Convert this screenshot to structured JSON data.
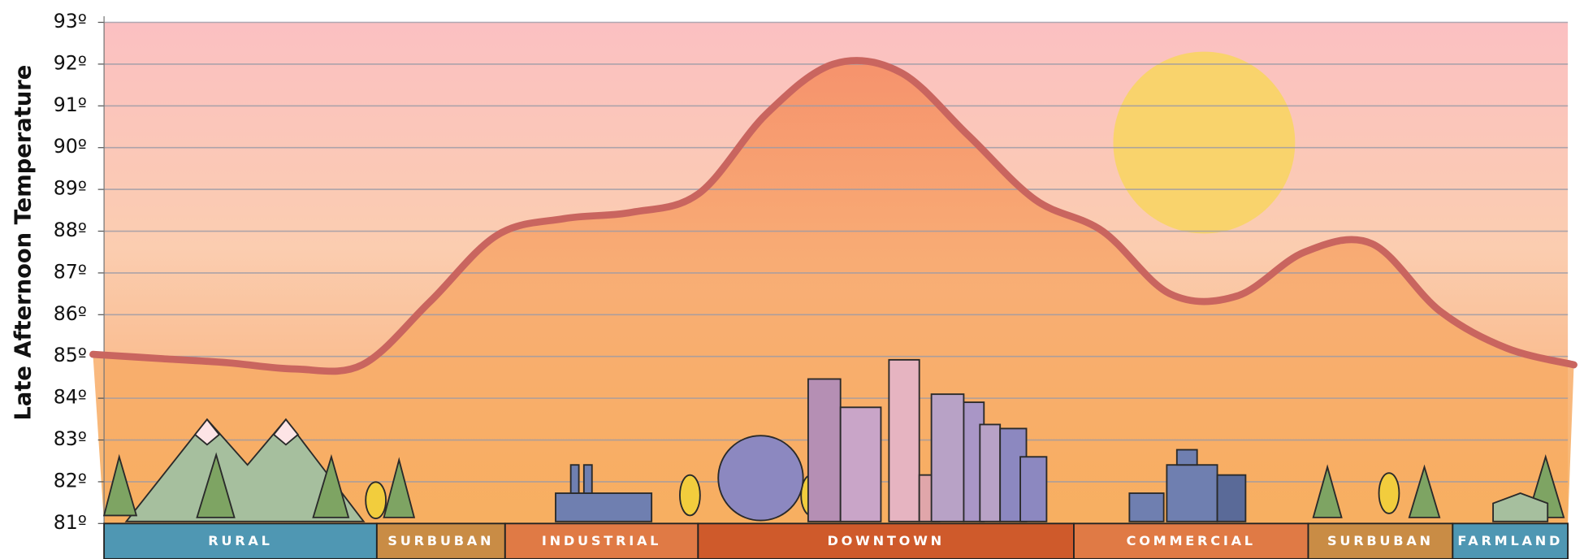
{
  "chart_data": {
    "type": "line",
    "y_label": "Late Afternoon Temperature",
    "ylim": [
      81,
      93
    ],
    "yticks": [
      {
        "value": 81,
        "label": "81º"
      },
      {
        "value": 82,
        "label": "82º"
      },
      {
        "value": 83,
        "label": "83º"
      },
      {
        "value": 84,
        "label": "84º"
      },
      {
        "value": 85,
        "label": "85º"
      },
      {
        "value": 86,
        "label": "86º"
      },
      {
        "value": 87,
        "label": "87º"
      },
      {
        "value": 88,
        "label": "88º"
      },
      {
        "value": 89,
        "label": "89º"
      },
      {
        "value": 90,
        "label": "90º"
      },
      {
        "value": 91,
        "label": "91º"
      },
      {
        "value": 92,
        "label": "92º"
      },
      {
        "value": 93,
        "label": "93º"
      }
    ],
    "grid": true,
    "series": [
      {
        "color": "#c9655f",
        "values": [
          85.05,
          84.95,
          84.85,
          84.7,
          84.8,
          86.3,
          87.9,
          88.3,
          88.45,
          88.9,
          90.8,
          92.0,
          91.8,
          90.3,
          88.75,
          88.0,
          86.5,
          86.45,
          87.5,
          87.7,
          86.1,
          85.2,
          84.8
        ]
      }
    ],
    "zones": [
      {
        "label": "RURAL",
        "color": "#4f97b3"
      },
      {
        "label": "SURBUBAN",
        "color": "#c98c45"
      },
      {
        "label": "INDUSTRIAL",
        "color": "#e07a45"
      },
      {
        "label": "DOWNTOWN",
        "color": "#cf5a2b"
      },
      {
        "label": "COMMERCIAL",
        "color": "#e07a45"
      },
      {
        "label": "SURBUBAN",
        "color": "#c98c45"
      },
      {
        "label": "FARMLAND",
        "color": "#4f97b3"
      }
    ]
  }
}
